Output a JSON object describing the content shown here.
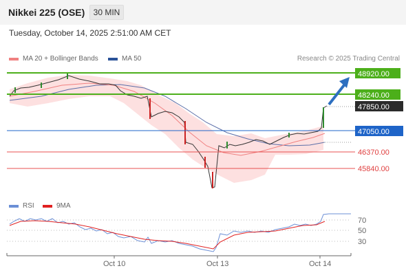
{
  "header": {
    "title": "Nikkei 225 (OSE)",
    "interval": "30 MIN"
  },
  "timestamp": "Tuesday, October 14, 2025 2:51:00 AM CET",
  "legend": {
    "ma20_bb": "MA 20 + Bollinger Bands",
    "ma50": "MA 50",
    "credit": "Research © 2025 Trading Central",
    "rsi": "RSI",
    "ma9": "9MA"
  },
  "levels": [
    {
      "value": "48920.00",
      "kind": "resistance",
      "color": "#4caf1a"
    },
    {
      "value": "48240.00",
      "kind": "resistance",
      "color": "#4caf1a"
    },
    {
      "value": "47850.00",
      "kind": "last",
      "color": "#333333"
    },
    {
      "value": "47050.00",
      "kind": "pivot",
      "color": "#1e64c8"
    },
    {
      "value": "46370.00",
      "kind": "support",
      "color": "#e85050"
    },
    {
      "value": "45840.00",
      "kind": "support",
      "color": "#e85050"
    }
  ],
  "rsi_ticks": [
    "70",
    "50",
    "30"
  ],
  "x_ticks": [
    "Oct 10",
    "Oct 13",
    "Oct 14"
  ],
  "colors": {
    "up": "#2e8b2e",
    "down": "#cc2222",
    "bollinger": "#fbd3d3",
    "ma20": "#f08080",
    "ma50": "#5a6ea8",
    "rsi": "#6b8fd6",
    "rsi_ma": "#e02020"
  }
}
